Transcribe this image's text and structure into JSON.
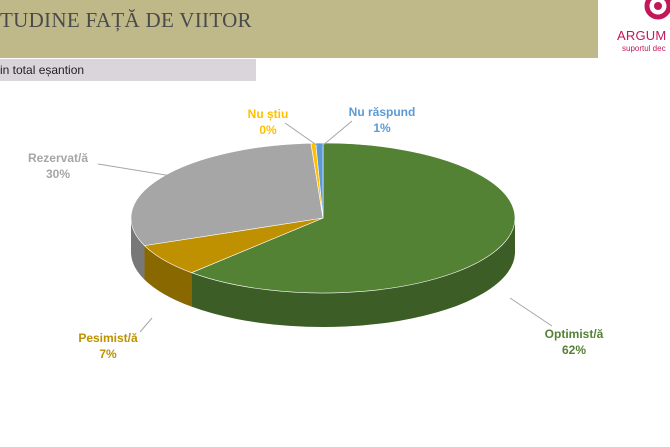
{
  "header": {
    "title": "TUDINE FAȚĂ DE VIITOR",
    "subtitle": "in total eșantion",
    "logo_text": "ARGUM",
    "logo_tagline": "suportul dec"
  },
  "chart_data": {
    "type": "pie",
    "title": "",
    "slices": [
      {
        "label": "Optimist/ă",
        "value": 62,
        "value_label": "62%",
        "color": "#548235"
      },
      {
        "label": "Pesimist/ă",
        "value": 7,
        "value_label": "7%",
        "color": "#bf9000"
      },
      {
        "label": "Rezervat/ă",
        "value": 30,
        "value_label": "30%",
        "color": "#a6a6a6"
      },
      {
        "label": "Nu știu",
        "value": 0.4,
        "value_label": "0%",
        "color": "#ffc000"
      },
      {
        "label": "Nu răspund",
        "value": 0.6,
        "value_label": "1%",
        "color": "#5b9bd5"
      }
    ],
    "label_colors": {
      "Optimist/ă": "#548235",
      "Pesimist/ă": "#bf9000",
      "Rezervat/ă": "#a6a6a6",
      "Nu știu": "#ffc000",
      "Nu răspund": "#5b9bd5"
    }
  }
}
